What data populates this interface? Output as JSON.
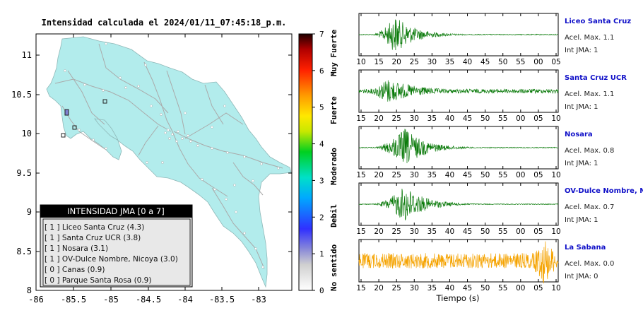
{
  "map": {
    "title": "Intensidad calculada el 2024/01/11_07:45:18_p.m.",
    "land_color": "#b2ecec",
    "x_ticks": [
      "-86",
      "-85.5",
      "-85",
      "-84.5",
      "-84",
      "-83.5",
      "-83"
    ],
    "y_ticks": [
      "11",
      "10.5",
      "10",
      "9.5",
      "9",
      "8.5",
      "8"
    ],
    "legend": {
      "title": "INTENSIDAD JMA [0 a 7]",
      "items": [
        "[ 1 ]  Liceo Santa Cruz (4.3)",
        "[ 1 ]  Santa Cruz UCR (3.8)",
        "[ 1 ]  Nosara (3.1)",
        "[ 1 ]  OV-Dulce Nombre, Nicoya (3.0)",
        "[ 0 ]  Canas (0.9)",
        "[ 0 ]  Parque Santa Rosa (0.9)"
      ]
    }
  },
  "colorbar": {
    "ticks": [
      "0",
      "1",
      "2",
      "3",
      "4",
      "5",
      "6",
      "7"
    ],
    "category_labels": [
      "No sentido",
      "Debil",
      "Moderado",
      "Fuerte",
      "Muy Fuerte"
    ]
  },
  "traces": [
    {
      "station": "Liceo Santa Cruz",
      "acel": "Acel. Max. 1.1",
      "int": "Int JMA: 1",
      "ticks": [
        "10",
        "15",
        "20",
        "25",
        "30",
        "35",
        "40",
        "45",
        "50",
        "55",
        "00",
        "05"
      ],
      "color": "#0a7a0a"
    },
    {
      "station": "Santa Cruz UCR",
      "acel": "Acel. Max. 1.1",
      "int": "Int JMA: 1",
      "ticks": [
        "15",
        "20",
        "25",
        "30",
        "35",
        "40",
        "45",
        "50",
        "55",
        "00",
        "05",
        "10"
      ],
      "color": "#0a7a0a"
    },
    {
      "station": "Nosara",
      "acel": "Acel. Max. 0.8",
      "int": "Int JMA: 1",
      "ticks": [
        "15",
        "20",
        "25",
        "30",
        "35",
        "40",
        "45",
        "50",
        "55",
        "00",
        "05",
        "10"
      ],
      "color": "#0a7a0a"
    },
    {
      "station": "OV-Dulce Nombre, Nico",
      "acel": "Acel. Max. 0.7",
      "int": "Int JMA: 1",
      "ticks": [
        "15",
        "20",
        "25",
        "30",
        "35",
        "40",
        "45",
        "50",
        "55",
        "00",
        "05",
        "10"
      ],
      "color": "#0a7a0a"
    },
    {
      "station": "La Sabana",
      "acel": "Acel. Max. 0.0",
      "int": "Int JMA: 0",
      "ticks": [
        "15",
        "20",
        "25",
        "30",
        "35",
        "40",
        "45",
        "50",
        "55",
        "00",
        "05",
        "10"
      ],
      "color": "#f5a300"
    }
  ],
  "time_axis_label": "Tiempo (s)",
  "chart_data": [
    {
      "type": "heatmap",
      "title": "Intensidad calculada el 2024/01/11_07:45:18_p.m.",
      "xlim": [
        -86,
        -82.5
      ],
      "ylim": [
        8,
        11.3
      ],
      "colorbar_range": [
        0,
        7
      ],
      "legend_title": "INTENSIDAD JMA [0 a 7]",
      "stations": [
        {
          "name": "Liceo Santa Cruz",
          "jma": 1,
          "value": 4.3
        },
        {
          "name": "Santa Cruz UCR",
          "jma": 1,
          "value": 3.8
        },
        {
          "name": "Nosara",
          "jma": 1,
          "value": 3.1
        },
        {
          "name": "OV-Dulce Nombre, Nicoya",
          "jma": 1,
          "value": 3.0
        },
        {
          "name": "Canas",
          "jma": 0,
          "value": 0.9
        },
        {
          "name": "Parque Santa Rosa",
          "jma": 0,
          "value": 0.9
        }
      ]
    },
    {
      "type": "line",
      "xlabel": "Tiempo (s)",
      "series": [
        {
          "name": "Liceo Santa Cruz",
          "peak_time": "20",
          "acel_max": 1.1,
          "int_jma": 1
        },
        {
          "name": "Santa Cruz UCR",
          "peak_time": "20",
          "acel_max": 1.1,
          "int_jma": 1
        },
        {
          "name": "Nosara",
          "peak_time": "25",
          "acel_max": 0.8,
          "int_jma": 1
        },
        {
          "name": "OV-Dulce Nombre, Nico",
          "peak_time": "25",
          "acel_max": 0.7,
          "int_jma": 1
        },
        {
          "name": "La Sabana",
          "peak_time": "05",
          "acel_max": 0.0,
          "int_jma": 0
        }
      ]
    }
  ]
}
